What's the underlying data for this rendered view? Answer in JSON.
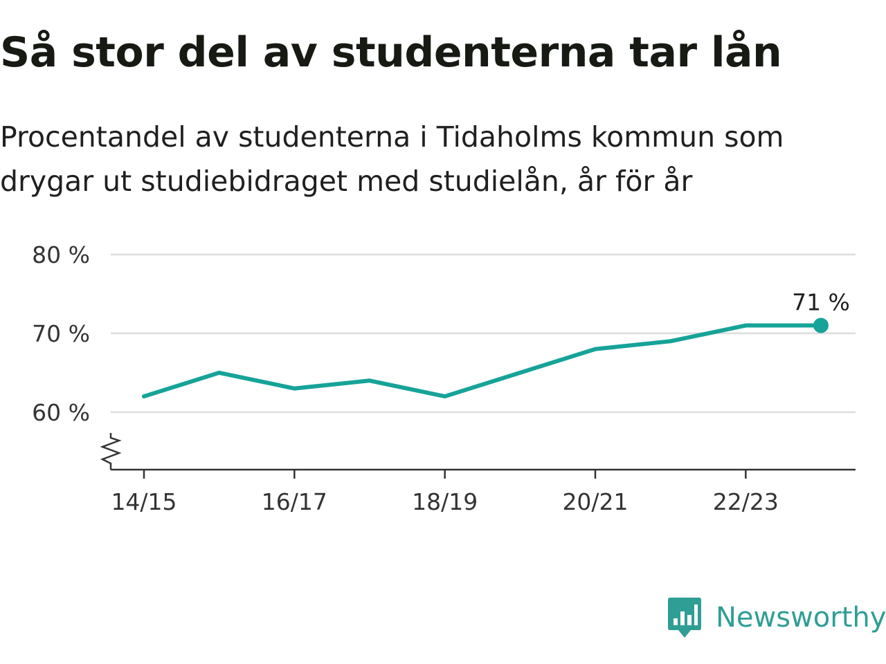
{
  "header": {
    "title": "Så stor del av studenterna tar lån",
    "subtitle": "Procentandel av studenterna i Tidaholms kommun som drygar ut studiebidraget med studielån, år för år"
  },
  "brand": {
    "name": "Newsworthy",
    "icon": "newsworthy-logo-icon",
    "color": "#2f9e95"
  },
  "chart_data": {
    "type": "line",
    "x": [
      "14/15",
      "15/16",
      "16/17",
      "17/18",
      "18/19",
      "19/20",
      "20/21",
      "21/22",
      "22/23",
      "23/24"
    ],
    "series": [
      {
        "values": [
          62,
          65,
          63,
          64,
          62,
          65,
          68,
          69,
          71,
          71
        ],
        "color": "#16a398"
      }
    ],
    "x_tick_labels": [
      "14/15",
      "16/17",
      "18/19",
      "20/21",
      "22/23"
    ],
    "y_ticks": [
      60,
      70,
      80
    ],
    "y_tick_labels": [
      "60 %",
      "70 %",
      "80 %"
    ],
    "ylim": [
      52.7,
      80
    ],
    "axis_break": true,
    "grid": true,
    "end_label": "71 %"
  }
}
